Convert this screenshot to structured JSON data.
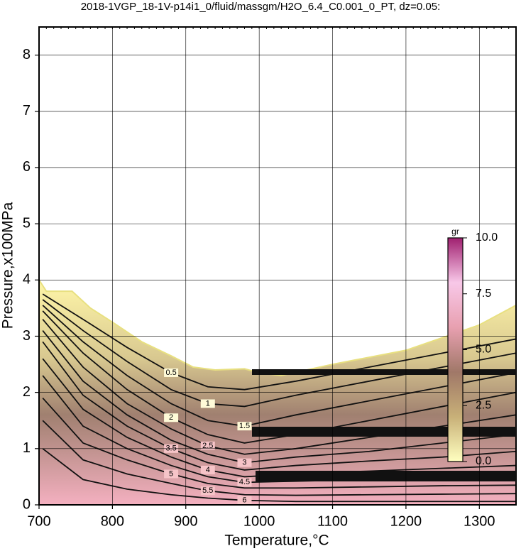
{
  "chart_data": {
    "type": "contour",
    "title": "2018-1VGP_18-1V-p14i1_0/fluid/massgm/H2O_6.4_C0.001_0_PT, dz=0.05:",
    "x_label": "Temperature,°C",
    "y_label": "Pressure,x100MPa",
    "xlim": [
      700,
      1350
    ],
    "ylim": [
      0,
      8.5
    ],
    "xticks": [
      700,
      800,
      900,
      1000,
      1100,
      1200,
      1300
    ],
    "yticks": [
      0,
      1,
      2,
      3,
      4,
      5,
      6,
      7,
      8
    ],
    "grid": true,
    "boundary": {
      "x": [
        700,
        710,
        745,
        770,
        800,
        840,
        880,
        910,
        940,
        980,
        1000,
        1030,
        1100,
        1200,
        1300,
        1350
      ],
      "y": [
        4.0,
        3.8,
        3.8,
        3.5,
        3.25,
        2.9,
        2.65,
        2.45,
        2.4,
        2.42,
        2.35,
        2.3,
        2.5,
        2.75,
        3.2,
        3.55
      ]
    },
    "contour_x": [
      705,
      760,
      820,
      880,
      930,
      980,
      1050,
      1150,
      1250,
      1350
    ],
    "contours": [
      {
        "level": 0.5,
        "y": [
          3.75,
          3.3,
          2.8,
          2.35,
          2.1,
          2.05,
          2.2,
          2.45,
          2.7,
          2.95
        ]
      },
      {
        "level": 1,
        "y": [
          3.65,
          3.1,
          2.55,
          2.05,
          1.8,
          1.75,
          1.95,
          2.2,
          2.45,
          2.7
        ]
      },
      {
        "level": 1.5,
        "y": [
          3.55,
          2.9,
          2.3,
          1.8,
          1.5,
          1.4,
          1.6,
          1.85,
          2.1,
          2.35
        ]
      },
      {
        "level": 2,
        "y": [
          3.45,
          2.7,
          2.05,
          1.55,
          1.25,
          1.1,
          1.25,
          1.5,
          1.75,
          2.0
        ]
      },
      {
        "level": 2.5,
        "y": [
          3.3,
          2.45,
          1.8,
          1.35,
          1.05,
          0.9,
          1.0,
          1.2,
          1.4,
          1.6
        ]
      },
      {
        "level": 3,
        "y": [
          3.1,
          2.2,
          1.6,
          1.15,
          0.9,
          0.75,
          0.85,
          0.95,
          1.1,
          1.25
        ]
      },
      {
        "level": 3.5,
        "y": [
          2.9,
          1.95,
          1.4,
          1.0,
          0.75,
          0.62,
          0.7,
          0.78,
          0.85,
          0.95
        ]
      },
      {
        "level": 4,
        "y": [
          2.6,
          1.7,
          1.2,
          0.85,
          0.62,
          0.5,
          0.55,
          0.6,
          0.65,
          0.7
        ]
      },
      {
        "level": 4.5,
        "y": [
          2.3,
          1.4,
          1.0,
          0.7,
          0.5,
          0.4,
          0.42,
          0.45,
          0.48,
          0.5
        ]
      },
      {
        "level": 5,
        "y": [
          1.9,
          1.1,
          0.8,
          0.55,
          0.38,
          0.3,
          0.3,
          0.32,
          0.34,
          0.35
        ]
      },
      {
        "level": 5.5,
        "y": [
          1.5,
          0.8,
          0.55,
          0.38,
          0.25,
          0.18,
          0.17,
          0.18,
          0.19,
          0.2
        ]
      },
      {
        "level": 6,
        "y": [
          1.0,
          0.45,
          0.28,
          0.18,
          0.12,
          0.08,
          0.06,
          0.06,
          0.06,
          0.06
        ]
      }
    ],
    "colorbar": {
      "label": "gr",
      "lim": [
        0,
        10
      ],
      "ticks": [
        {
          "value": 0,
          "label": "0.0"
        },
        {
          "value": 2.5,
          "label": "2.5"
        },
        {
          "value": 5,
          "label": "5.0"
        },
        {
          "value": 7.5,
          "label": "7.5"
        },
        {
          "value": 10,
          "label": "10.0"
        }
      ],
      "colors": [
        "#ffffc0",
        "#c8b078",
        "#a07868",
        "#e8a0b0",
        "#f8c8e8",
        "#a02070"
      ]
    }
  }
}
